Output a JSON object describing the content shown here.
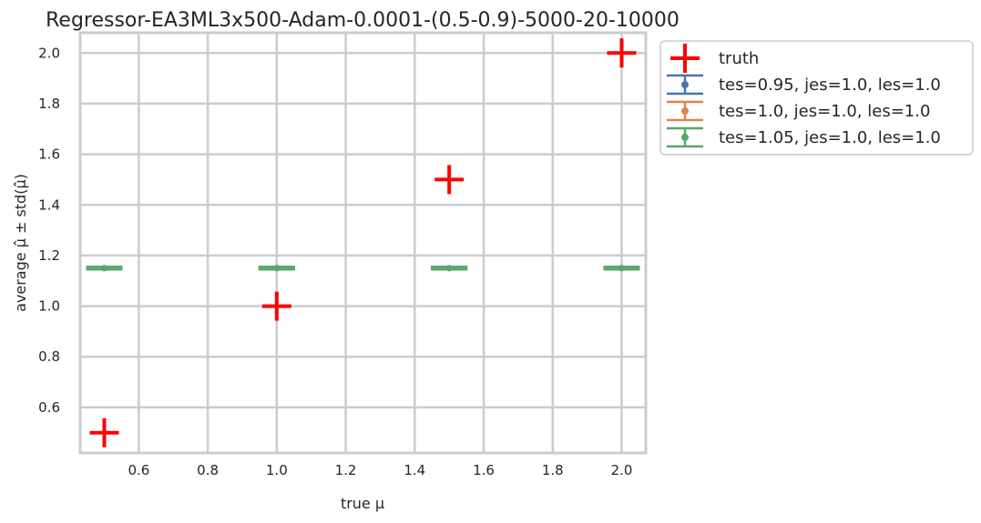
{
  "chart_data": {
    "type": "scatter",
    "title": "Regressor-EA3ML3x500-Adam-0.0001-(0.5-0.9)-5000-20-10000",
    "xlabel": "true μ",
    "ylabel": "average μ̂ ± std(μ̂)",
    "xlim": [
      0.43,
      2.07
    ],
    "ylim": [
      0.42,
      2.08
    ],
    "xticks": [
      "0.6",
      "0.8",
      "1.0",
      "1.2",
      "1.4",
      "1.6",
      "1.8",
      "2.0"
    ],
    "xtick_values": [
      0.6,
      0.8,
      1.0,
      1.2,
      1.4,
      1.6,
      1.8,
      2.0
    ],
    "yticks": [
      "0.6",
      "0.8",
      "1.0",
      "1.2",
      "1.4",
      "1.6",
      "1.8",
      "2.0"
    ],
    "ytick_values": [
      0.6,
      0.8,
      1.0,
      1.2,
      1.4,
      1.6,
      1.8,
      2.0
    ],
    "grid": true,
    "legend_position": "outside-right-top",
    "truth": {
      "name": "truth",
      "color": "#ff0000",
      "x": [
        0.5,
        1.0,
        1.5,
        2.0
      ],
      "y": [
        0.5,
        1.0,
        1.5,
        2.0
      ]
    },
    "series": [
      {
        "name": "tes=0.95, jes=1.0, les=1.0",
        "color": "#4c72b0",
        "x": [
          0.5,
          1.0,
          1.5,
          2.0
        ],
        "y": [
          1.15,
          1.15,
          1.15,
          1.15
        ],
        "err": [
          0.005,
          0.005,
          0.005,
          0.005
        ]
      },
      {
        "name": "tes=1.0, jes=1.0, les=1.0",
        "color": "#dd8452",
        "x": [
          0.5,
          1.0,
          1.5,
          2.0
        ],
        "y": [
          1.15,
          1.15,
          1.15,
          1.15
        ],
        "err": [
          0.005,
          0.005,
          0.005,
          0.005
        ]
      },
      {
        "name": "tes=1.05, jes=1.0, les=1.0",
        "color": "#55a868",
        "x": [
          0.5,
          1.0,
          1.5,
          2.0
        ],
        "y": [
          1.15,
          1.15,
          1.15,
          1.15
        ],
        "err": [
          0.005,
          0.005,
          0.005,
          0.005
        ]
      }
    ]
  }
}
